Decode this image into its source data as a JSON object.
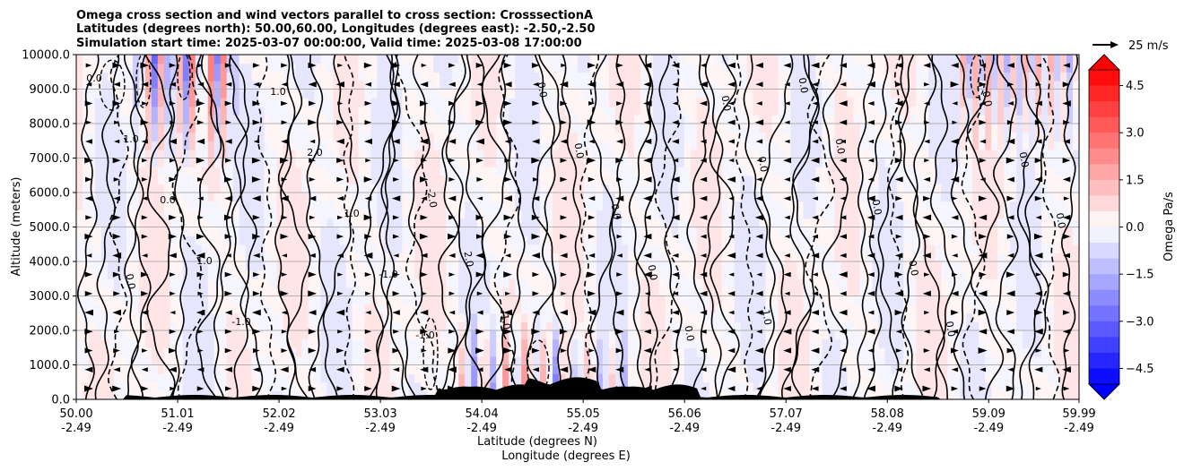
{
  "chart_data": {
    "type": "heatmap",
    "title_lines": [
      "Omega cross section and wind vectors parallel to cross section: CrosssectionA",
      "Latitudes (degrees north): 50.00,60.00, Longitudes (degrees east): -2.50,-2.50",
      "Simulation start time: 2025-03-07 00:00:00, Valid time: 2025-03-08 17:00:00"
    ],
    "ylabel": "Altitude (meters)",
    "xlabel_lines": [
      "Latitude (degrees N)",
      "Longitude (degrees E)"
    ],
    "xlim": [
      50.0,
      59.99
    ],
    "ylim": [
      0,
      10000
    ],
    "x_ticks": [
      {
        "lat": "50.00",
        "lon": "-2.49"
      },
      {
        "lat": "51.01",
        "lon": "-2.49"
      },
      {
        "lat": "52.02",
        "lon": "-2.49"
      },
      {
        "lat": "53.03",
        "lon": "-2.49"
      },
      {
        "lat": "54.04",
        "lon": "-2.49"
      },
      {
        "lat": "55.05",
        "lon": "-2.49"
      },
      {
        "lat": "56.06",
        "lon": "-2.49"
      },
      {
        "lat": "57.07",
        "lon": "-2.49"
      },
      {
        "lat": "58.08",
        "lon": "-2.49"
      },
      {
        "lat": "59.09",
        "lon": "-2.49"
      },
      {
        "lat": "59.99",
        "lon": "-2.49"
      }
    ],
    "y_ticks": [
      "0.0",
      "1000.0",
      "2000.0",
      "3000.0",
      "4000.0",
      "5000.0",
      "6000.0",
      "7000.0",
      "8000.0",
      "9000.0",
      "10000.0"
    ],
    "y_tick_values": [
      0,
      1000,
      2000,
      3000,
      4000,
      5000,
      6000,
      7000,
      8000,
      9000,
      10000
    ],
    "grid": true,
    "colorbar": {
      "label": "Omega Pa/s",
      "range": [
        -5.0,
        5.0
      ],
      "step": 0.5,
      "ticks": [
        "4.5",
        "3.0",
        "1.5",
        "0.0",
        "−1.5",
        "−3.0",
        "−4.5"
      ],
      "tick_values": [
        4.5,
        3.0,
        1.5,
        0.0,
        -1.5,
        -3.0,
        -4.5
      ],
      "low_color": "#0000ff",
      "high_color": "#ff0000",
      "mid_color": "#ffffff"
    },
    "vector_key": {
      "label": "25 m/s"
    },
    "contour_levels": [
      -2.0,
      -1.0,
      0.0,
      1.0,
      2.0
    ],
    "contour_labels": [
      "0.0",
      "-2.0",
      "-1.0",
      "1.0",
      "2.0",
      "0.0",
      "0.0",
      "-1.0",
      "0.0",
      "1.0",
      "0.0",
      "0.0",
      "-1.0",
      "0.0",
      "0.0",
      "1.0",
      "0.0",
      "0.0",
      "2.0",
      "0.0",
      "0.0",
      "1.0",
      "0.0",
      "0.0",
      "-1.0",
      "0.0",
      "0.0",
      "-1.0",
      "0.0",
      "0.0"
    ],
    "terrain_note": "black terrain along base of section"
  }
}
